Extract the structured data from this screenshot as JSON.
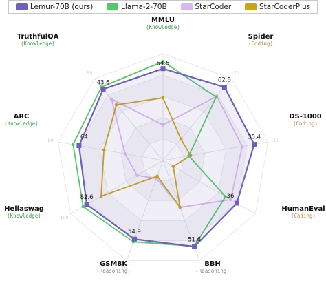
{
  "chart_data": {
    "type": "radar",
    "axes": [
      {
        "name": "MMLU",
        "category": "(Knowledge)",
        "category_color": "#3aa04a",
        "max": 75,
        "max_label": "",
        "lemur": "64.5"
      },
      {
        "name": "Spider",
        "category": "(Coding)",
        "category_color": "#c07a4a",
        "max": 70,
        "max_label": "70",
        "lemur": "62.8"
      },
      {
        "name": "DS-1000",
        "category": "(Coding)",
        "category_color": "#c07a4a",
        "max": 35,
        "max_label": "35",
        "lemur": "30.4"
      },
      {
        "name": "HumanEval",
        "category": "(Coding)",
        "category_color": "#c07a4a",
        "max": 45,
        "max_label": "",
        "lemur": "36"
      },
      {
        "name": "BBH",
        "category": "(Reasoning)",
        "category_color": "#808090",
        "max": 60,
        "max_label": "",
        "lemur": "51.6"
      },
      {
        "name": "GSM8K",
        "category": "(Reasoning)",
        "category_color": "#808090",
        "max": 70,
        "max_label": "70",
        "lemur": "54.9"
      },
      {
        "name": "Hellaswag",
        "category": "(Knowledge)",
        "category_color": "#3aa04a",
        "max": 100,
        "max_label": "100",
        "lemur": "82.6"
      },
      {
        "name": "ARC",
        "category": "(Knowledge)",
        "category_color": "#3aa04a",
        "max": 80,
        "max_label": "80",
        "lemur": "64"
      },
      {
        "name": "TruthfulQA",
        "category": "(Knowledge)",
        "category_color": "#3aa04a",
        "max": 50,
        "max_label": "50",
        "lemur": "43.6"
      }
    ],
    "series": [
      {
        "name": "Lemur-70B (ours)",
        "color": "#7060b8",
        "fill": "rgba(112,96,184,0.10)",
        "marker": "square",
        "values": [
          64.5,
          62.8,
          30.4,
          36,
          51.6,
          54.9,
          82.6,
          64,
          43.6
        ]
      },
      {
        "name": "Llama-2-70B",
        "color": "#55c86a",
        "fill": "none",
        "marker": "circle",
        "values": [
          69.5,
          54.3,
          8.6,
          30.5,
          51.3,
          56.8,
          86.5,
          68.5,
          44.9
        ]
      },
      {
        "name": "StarCoder",
        "color": "#dab8ee",
        "fill": "none",
        "marker": "circle",
        "values": [
          25,
          55,
          26.4,
          33,
          28,
          12.5,
          28,
          29,
          37.5
        ]
      },
      {
        "name": "StarCoderPlus",
        "color": "#c9a414",
        "fill": "none",
        "marker": "circle",
        "values": [
          44,
          18.3,
          9.2,
          5,
          28,
          11,
          67,
          45,
          34
        ]
      }
    ],
    "grid": "polygonal rings",
    "legend": "top"
  }
}
